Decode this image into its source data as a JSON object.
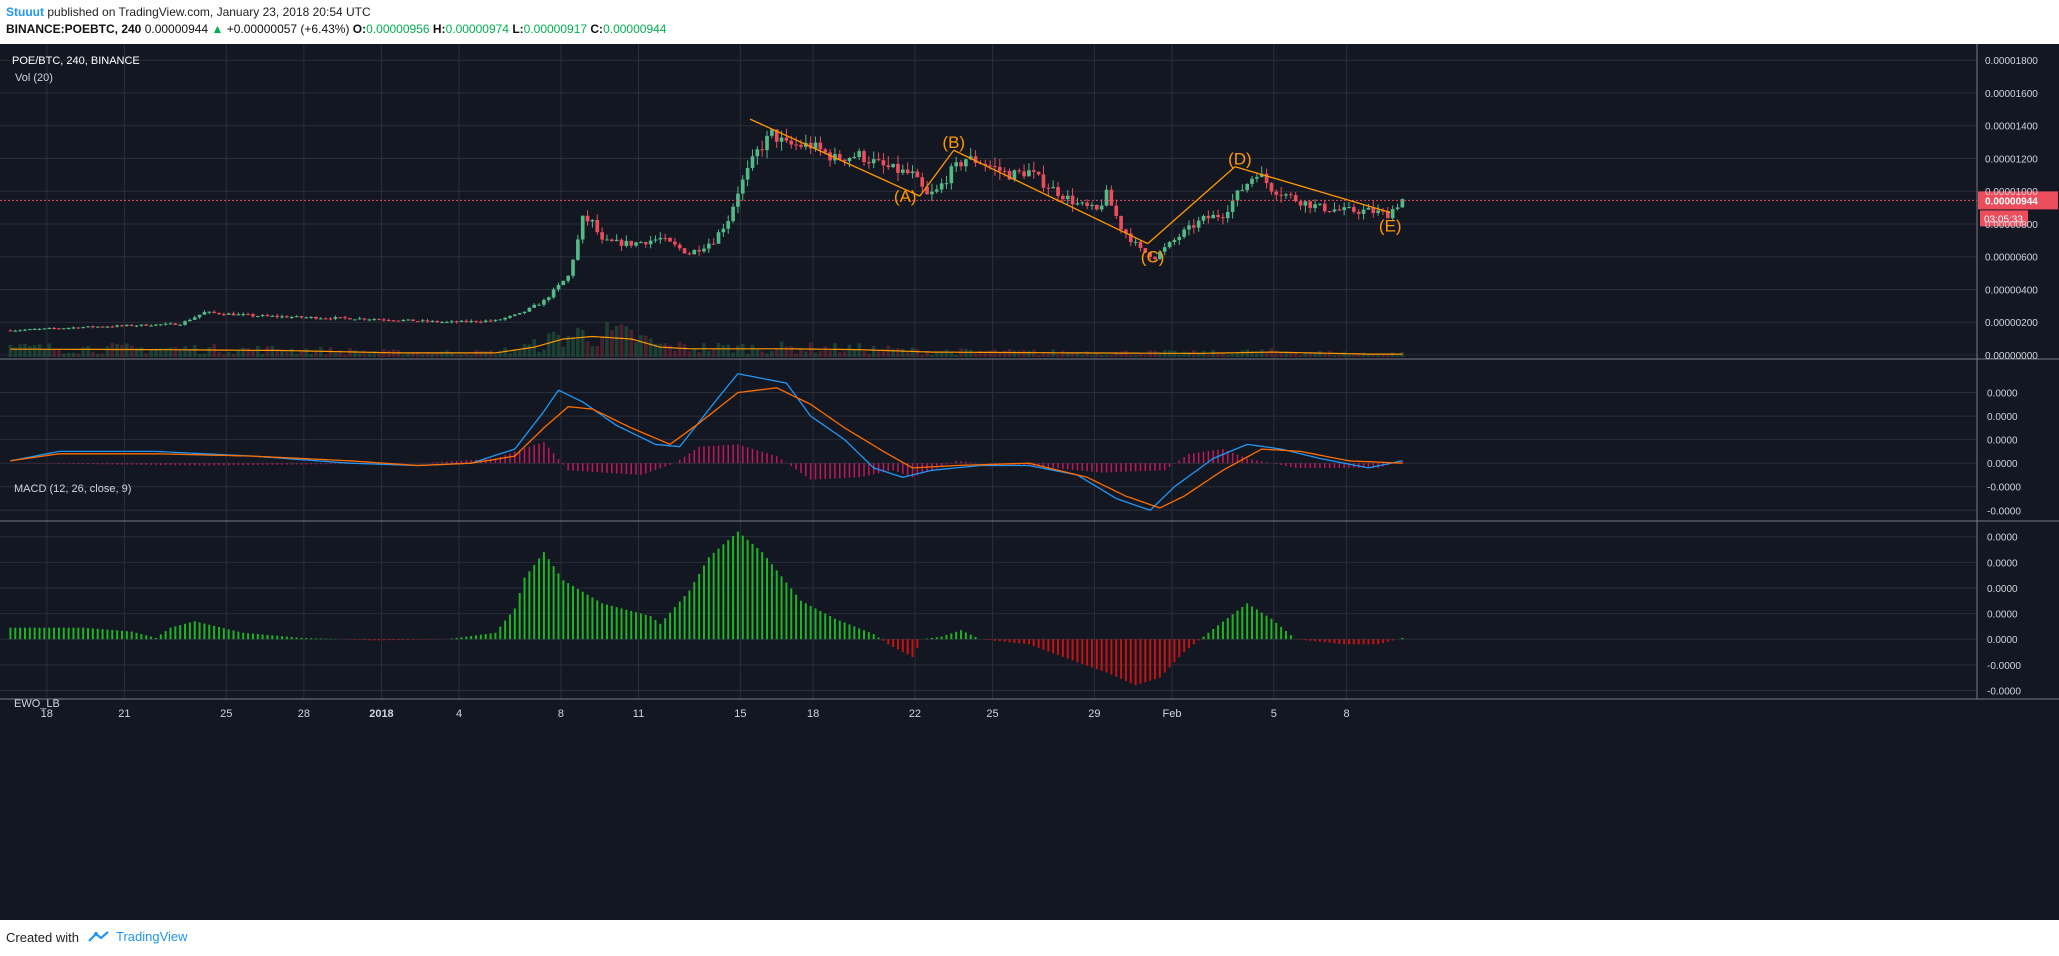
{
  "header": {
    "username": "Stuuut",
    "published_text": "published on TradingView.com, January 23, 2018 20:54 UTC",
    "symbol": "BINANCE:POEBTC, 240",
    "last": "0.00000944",
    "change": "+0.00000057 (+6.43%)",
    "o_label": "O:",
    "o": "0.00000956",
    "h_label": "H:",
    "h": "0.00000974",
    "l_label": "L:",
    "l": "0.00000917",
    "c_label": "C:",
    "c": "0.00000944"
  },
  "footer": {
    "created": "Created with",
    "brand": "TradingView"
  },
  "colors": {
    "background": "#131722",
    "grid": "#2a2e39",
    "up": "#53b987",
    "down": "#eb4d5c",
    "volume_ma": "#ff9800",
    "macd_line": "#2196f3",
    "signal_line": "#ff6d00",
    "macd_hist": "#c2185b",
    "ewo_up": "#1eb524",
    "ewo_down": "#c91111",
    "wave_lines": "#ff9800",
    "price_line": "#eb4d5c"
  },
  "chart_data": [
    {
      "type": "candlestick",
      "title": "POE/BTC, 240, BINANCE",
      "subtitle": "Vol (20)",
      "y_ticks": [
        "0.00001800",
        "0.00001600",
        "0.00001400",
        "0.00001200",
        "0.00001000",
        "0.00000800",
        "0.00000600",
        "0.00000400",
        "0.00000200",
        "0.00000000"
      ],
      "ylim": [
        0,
        1.85e-05
      ],
      "x_ticks": [
        "18",
        "21",
        "25",
        "28",
        "2018",
        "4",
        "8",
        "11",
        "15",
        "18",
        "22",
        "25",
        "29",
        "Feb",
        "5",
        "8"
      ],
      "last_price_label": "0.00000944",
      "countdown_label": "03:05:33",
      "price_anchors": [
        [
          0,
          1.5e-06
        ],
        [
          15,
          1.7e-06
        ],
        [
          35,
          1.9e-06
        ],
        [
          40,
          2.6e-06
        ],
        [
          50,
          2.4e-06
        ],
        [
          60,
          2.3e-06
        ],
        [
          75,
          2.2e-06
        ],
        [
          90,
          2e-06
        ],
        [
          100,
          2.1e-06
        ],
        [
          105,
          2.5e-06
        ],
        [
          110,
          3.3e-06
        ],
        [
          115,
          4.8e-06
        ],
        [
          117,
          7e-06
        ],
        [
          118,
          8.3e-06
        ],
        [
          120,
          8.1e-06
        ],
        [
          122,
          6.9e-06
        ],
        [
          128,
          6.8e-06
        ],
        [
          134,
          7.1e-06
        ],
        [
          140,
          6.2e-06
        ],
        [
          145,
          7e-06
        ],
        [
          148,
          8.3e-06
        ],
        [
          150,
          1e-05
        ],
        [
          154,
          1.24e-05
        ],
        [
          157,
          1.35e-05
        ],
        [
          160,
          1.28e-05
        ],
        [
          165,
          1.28e-05
        ],
        [
          170,
          1.2e-05
        ],
        [
          175,
          1.22e-05
        ],
        [
          180,
          1.15e-05
        ],
        [
          186,
          1.1e-05
        ],
        [
          189,
          9.7e-06
        ],
        [
          191,
          1e-05
        ],
        [
          194,
          1.12e-05
        ],
        [
          197,
          1.2e-05
        ],
        [
          200,
          1.18e-05
        ],
        [
          206,
          1.1e-05
        ],
        [
          210,
          1.12e-05
        ],
        [
          213,
          1.05e-05
        ],
        [
          220,
          9.2e-06
        ],
        [
          224,
          8.8e-06
        ],
        [
          226,
          9.8e-06
        ],
        [
          229,
          7.8e-06
        ],
        [
          233,
          6.4e-06
        ],
        [
          236,
          6e-06
        ],
        [
          238,
          6.5e-06
        ],
        [
          242,
          7.5e-06
        ],
        [
          246,
          8.3e-06
        ],
        [
          250,
          8.6e-06
        ],
        [
          253,
          9.8e-06
        ],
        [
          257,
          1.12e-05
        ],
        [
          260,
          1.02e-05
        ],
        [
          265,
          9.5e-06
        ],
        [
          270,
          9e-06
        ],
        [
          275,
          8.8e-06
        ],
        [
          280,
          8.8e-06
        ],
        [
          284,
          8.6e-06
        ],
        [
          287,
          9.5e-06
        ]
      ],
      "volume_ma_anchors": [
        [
          0,
          4.8e-07
        ],
        [
          30,
          4.5e-07
        ],
        [
          55,
          4e-07
        ],
        [
          80,
          2.5e-07
        ],
        [
          100,
          2.5e-07
        ],
        [
          108,
          6e-07
        ],
        [
          114,
          1.1e-06
        ],
        [
          120,
          1.25e-06
        ],
        [
          128,
          1.1e-06
        ],
        [
          134,
          6e-07
        ],
        [
          140,
          5e-07
        ],
        [
          150,
          5e-07
        ],
        [
          160,
          5e-07
        ],
        [
          175,
          4.5e-07
        ],
        [
          190,
          3e-07
        ],
        [
          220,
          2.5e-07
        ],
        [
          245,
          2.2e-07
        ],
        [
          260,
          3e-07
        ],
        [
          280,
          1.8e-07
        ],
        [
          287,
          1.8e-07
        ]
      ],
      "wave_labels": [
        "(A)",
        "(B)",
        "(C)",
        "(D)",
        "(E)"
      ],
      "wave_lines": [
        [
          153,
          1.44e-05,
          188,
          9.7e-06
        ],
        [
          188,
          9.7e-06,
          195,
          1.25e-05
        ],
        [
          195,
          1.25e-05,
          235,
          6.8e-06
        ],
        [
          235,
          6.8e-06,
          253,
          1.15e-05
        ],
        [
          253,
          1.15e-05,
          285,
          8.7e-06
        ]
      ],
      "wave_label_positions": [
        [
          185,
          9.7e-06
        ],
        [
          195,
          1.3e-05
        ],
        [
          236,
          6e-06
        ],
        [
          254,
          1.2e-05
        ],
        [
          285,
          7.9e-06
        ]
      ]
    },
    {
      "type": "line",
      "title": "MACD (12, 26, close, 9)",
      "y_ticks": [
        "0.0000",
        "0.0000",
        "0.0000",
        "0.0000",
        "-0.0000",
        "-0.0000"
      ],
      "ylim": [
        -2.2,
        4.0
      ],
      "series": [
        {
          "name": "MACD",
          "anchors": [
            [
              0,
              0.1
            ],
            [
              10,
              0.5
            ],
            [
              30,
              0.5
            ],
            [
              50,
              0.3
            ],
            [
              70,
              0.0
            ],
            [
              84,
              -0.1
            ],
            [
              95,
              0.0
            ],
            [
              104,
              0.6
            ],
            [
              110,
              2.2
            ],
            [
              113,
              3.1
            ],
            [
              118,
              2.6
            ],
            [
              125,
              1.6
            ],
            [
              133,
              0.8
            ],
            [
              138,
              0.7
            ],
            [
              146,
              2.8
            ],
            [
              150,
              3.8
            ],
            [
              155,
              3.6
            ],
            [
              160,
              3.4
            ],
            [
              165,
              2.0
            ],
            [
              172,
              1.0
            ],
            [
              178,
              -0.2
            ],
            [
              184,
              -0.6
            ],
            [
              190,
              -0.3
            ],
            [
              200,
              -0.1
            ],
            [
              210,
              -0.1
            ],
            [
              220,
              -0.5
            ],
            [
              228,
              -1.5
            ],
            [
              235,
              -2.0
            ],
            [
              240,
              -1.0
            ],
            [
              248,
              0.2
            ],
            [
              255,
              0.8
            ],
            [
              262,
              0.6
            ],
            [
              270,
              0.2
            ],
            [
              280,
              -0.2
            ],
            [
              287,
              0.1
            ]
          ]
        },
        {
          "name": "Signal",
          "anchors": [
            [
              0,
              0.1
            ],
            [
              10,
              0.4
            ],
            [
              30,
              0.4
            ],
            [
              50,
              0.3
            ],
            [
              70,
              0.1
            ],
            [
              84,
              -0.1
            ],
            [
              95,
              0.0
            ],
            [
              104,
              0.3
            ],
            [
              110,
              1.5
            ],
            [
              115,
              2.4
            ],
            [
              120,
              2.3
            ],
            [
              128,
              1.5
            ],
            [
              136,
              0.8
            ],
            [
              142,
              1.7
            ],
            [
              150,
              3.0
            ],
            [
              158,
              3.2
            ],
            [
              165,
              2.5
            ],
            [
              172,
              1.5
            ],
            [
              180,
              0.5
            ],
            [
              186,
              -0.2
            ],
            [
              195,
              -0.1
            ],
            [
              210,
              0.0
            ],
            [
              222,
              -0.6
            ],
            [
              230,
              -1.4
            ],
            [
              237,
              -1.9
            ],
            [
              242,
              -1.4
            ],
            [
              250,
              -0.3
            ],
            [
              258,
              0.6
            ],
            [
              266,
              0.5
            ],
            [
              276,
              0.1
            ],
            [
              287,
              0.0
            ]
          ]
        }
      ],
      "histogram_anchors": [
        [
          0,
          0.0
        ],
        [
          40,
          -0.1
        ],
        [
          84,
          0.0
        ],
        [
          100,
          0.2
        ],
        [
          107,
          0.7
        ],
        [
          110,
          0.9
        ],
        [
          115,
          -0.3
        ],
        [
          130,
          -0.5
        ],
        [
          137,
          0.0
        ],
        [
          142,
          0.7
        ],
        [
          150,
          0.8
        ],
        [
          158,
          0.3
        ],
        [
          165,
          -0.7
        ],
        [
          175,
          -0.6
        ],
        [
          182,
          -0.3
        ],
        [
          186,
          -0.6
        ],
        [
          195,
          0.1
        ],
        [
          200,
          0.0
        ],
        [
          210,
          -0.1
        ],
        [
          225,
          -0.4
        ],
        [
          238,
          -0.3
        ],
        [
          243,
          0.4
        ],
        [
          250,
          0.6
        ],
        [
          255,
          0.2
        ],
        [
          265,
          -0.2
        ],
        [
          282,
          -0.2
        ],
        [
          287,
          0.1
        ]
      ]
    },
    {
      "type": "bar",
      "title": "EWO_LB",
      "y_ticks": [
        "0.0000",
        "0.0000",
        "0.0000",
        "0.0000",
        "0.0000",
        "0.0000",
        "-0.0000",
        "-0.0000"
      ],
      "ylim": [
        -2.1,
        4.3
      ],
      "anchors": [
        [
          0,
          0.45
        ],
        [
          15,
          0.45
        ],
        [
          25,
          0.3
        ],
        [
          30,
          0.05
        ],
        [
          33,
          0.45
        ],
        [
          38,
          0.7
        ],
        [
          48,
          0.25
        ],
        [
          60,
          0.05
        ],
        [
          68,
          0.0
        ],
        [
          75,
          -0.05
        ],
        [
          90,
          0.0
        ],
        [
          100,
          0.25
        ],
        [
          104,
          1.2
        ],
        [
          106,
          2.4
        ],
        [
          110,
          3.4
        ],
        [
          114,
          2.3
        ],
        [
          122,
          1.4
        ],
        [
          128,
          1.1
        ],
        [
          132,
          0.9
        ],
        [
          134,
          0.6
        ],
        [
          140,
          1.9
        ],
        [
          144,
          3.2
        ],
        [
          150,
          4.2
        ],
        [
          155,
          3.4
        ],
        [
          163,
          1.5
        ],
        [
          170,
          0.8
        ],
        [
          178,
          0.2
        ],
        [
          181,
          -0.2
        ],
        [
          186,
          -0.7
        ],
        [
          188,
          0.0
        ],
        [
          192,
          0.1
        ],
        [
          196,
          0.35
        ],
        [
          200,
          0.0
        ],
        [
          210,
          -0.2
        ],
        [
          220,
          -0.9
        ],
        [
          226,
          -1.3
        ],
        [
          232,
          -1.8
        ],
        [
          237,
          -1.5
        ],
        [
          242,
          -0.5
        ],
        [
          248,
          0.4
        ],
        [
          255,
          1.4
        ],
        [
          260,
          0.8
        ],
        [
          265,
          0.0
        ],
        [
          275,
          -0.2
        ],
        [
          282,
          -0.2
        ],
        [
          287,
          0.05
        ]
      ]
    }
  ]
}
